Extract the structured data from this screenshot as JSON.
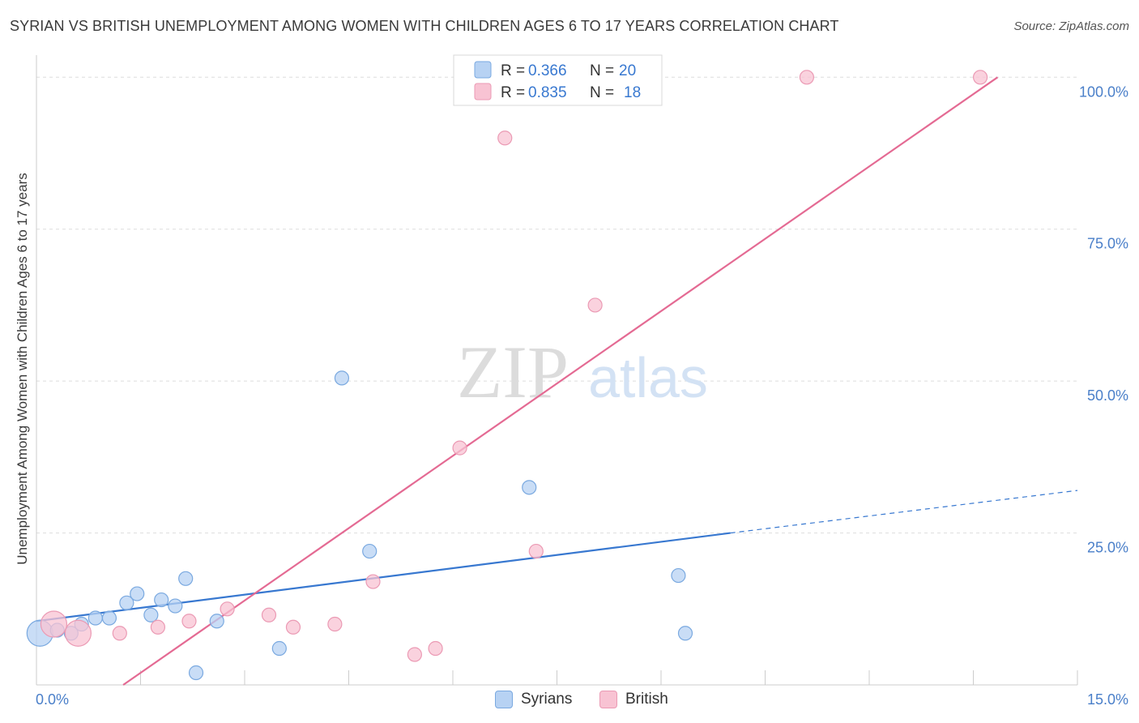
{
  "title": "SYRIAN VS BRITISH UNEMPLOYMENT AMONG WOMEN WITH CHILDREN AGES 6 TO 17 YEARS CORRELATION CHART",
  "source": "Source: ZipAtlas.com",
  "watermark": {
    "zip": "ZIP",
    "atlas": "atlas"
  },
  "colors": {
    "syrians_fill": "#b7d2f3",
    "syrians_stroke": "#7aa9e0",
    "syrians_line": "#3878d0",
    "british_fill": "#f8c3d3",
    "british_stroke": "#eb9ab4",
    "british_line": "#e46a93",
    "tick_text": "#4a7fc9",
    "grid": "#dddddd"
  },
  "legend": {
    "rows": [
      {
        "r_label": "R =",
        "r_value": "0.366",
        "n_label": "N =",
        "n_value": "20"
      },
      {
        "r_label": "R =",
        "r_value": "0.835",
        "n_label": "N =",
        "n_value": "18"
      }
    ]
  },
  "chart_data": {
    "type": "scatter",
    "title": "SYRIAN VS BRITISH UNEMPLOYMENT AMONG WOMEN WITH CHILDREN AGES 6 TO 17 YEARS CORRELATION CHART",
    "xlabel": "",
    "ylabel": "Unemployment Among Women with Children Ages 6 to 17 years",
    "xlim": [
      0,
      15
    ],
    "ylim": [
      0,
      100
    ],
    "x_tick_labels": [
      "0.0%",
      "15.0%"
    ],
    "y_ticks": [
      25,
      50,
      75,
      100
    ],
    "y_tick_labels": [
      "25.0%",
      "50.0%",
      "75.0%",
      "100.0%"
    ],
    "series": [
      {
        "name": "Syrians",
        "points": [
          {
            "x": 0.05,
            "y": 8.5,
            "big": true
          },
          {
            "x": 0.3,
            "y": 9.0
          },
          {
            "x": 0.5,
            "y": 8.5
          },
          {
            "x": 0.65,
            "y": 10.0
          },
          {
            "x": 0.85,
            "y": 11.0
          },
          {
            "x": 1.05,
            "y": 11.0
          },
          {
            "x": 1.3,
            "y": 13.5
          },
          {
            "x": 1.45,
            "y": 15.0
          },
          {
            "x": 1.65,
            "y": 11.5
          },
          {
            "x": 1.8,
            "y": 14.0
          },
          {
            "x": 2.0,
            "y": 13.0
          },
          {
            "x": 2.15,
            "y": 17.5
          },
          {
            "x": 2.3,
            "y": 2.0
          },
          {
            "x": 2.6,
            "y": 10.5
          },
          {
            "x": 3.5,
            "y": 6.0
          },
          {
            "x": 4.4,
            "y": 50.5
          },
          {
            "x": 4.8,
            "y": 22.0
          },
          {
            "x": 7.1,
            "y": 32.5
          },
          {
            "x": 9.25,
            "y": 18.0
          },
          {
            "x": 9.35,
            "y": 8.5
          }
        ],
        "trend": {
          "x0": 0,
          "y0": 10.5,
          "x1": 10.0,
          "y1": 25.0,
          "dash_to_x": 15.0,
          "dash_to_y": 32.0
        }
      },
      {
        "name": "British",
        "points": [
          {
            "x": 0.25,
            "y": 10.0,
            "big": true
          },
          {
            "x": 0.6,
            "y": 8.5,
            "big": true
          },
          {
            "x": 1.2,
            "y": 8.5
          },
          {
            "x": 1.75,
            "y": 9.5
          },
          {
            "x": 2.2,
            "y": 10.5
          },
          {
            "x": 2.75,
            "y": 12.5
          },
          {
            "x": 3.35,
            "y": 11.5
          },
          {
            "x": 3.7,
            "y": 9.5
          },
          {
            "x": 4.3,
            "y": 10.0
          },
          {
            "x": 4.85,
            "y": 17.0
          },
          {
            "x": 5.45,
            "y": 5.0
          },
          {
            "x": 5.75,
            "y": 6.0
          },
          {
            "x": 6.1,
            "y": 39.0
          },
          {
            "x": 6.75,
            "y": 90.0
          },
          {
            "x": 7.2,
            "y": 22.0
          },
          {
            "x": 8.05,
            "y": 62.5
          },
          {
            "x": 11.1,
            "y": 100.0
          },
          {
            "x": 13.6,
            "y": 100.0
          }
        ],
        "trend": {
          "x0": 1.25,
          "y0": 0,
          "x1": 13.85,
          "y1": 100.0
        }
      }
    ],
    "legend_position": "top-center"
  }
}
